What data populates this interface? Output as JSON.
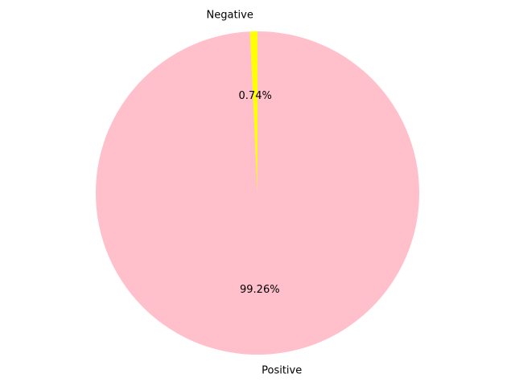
{
  "chart_data": {
    "type": "pie",
    "title": "",
    "labels": [
      "Negative",
      "Positive"
    ],
    "values": [
      0.74,
      99.26
    ],
    "percent_labels": [
      "0.74%",
      "99.26%"
    ],
    "colors": [
      "#ffff00",
      "#ffc0cb"
    ],
    "start_angle": "top (12 o'clock)",
    "direction": "counterclockwise",
    "legend": "none"
  }
}
